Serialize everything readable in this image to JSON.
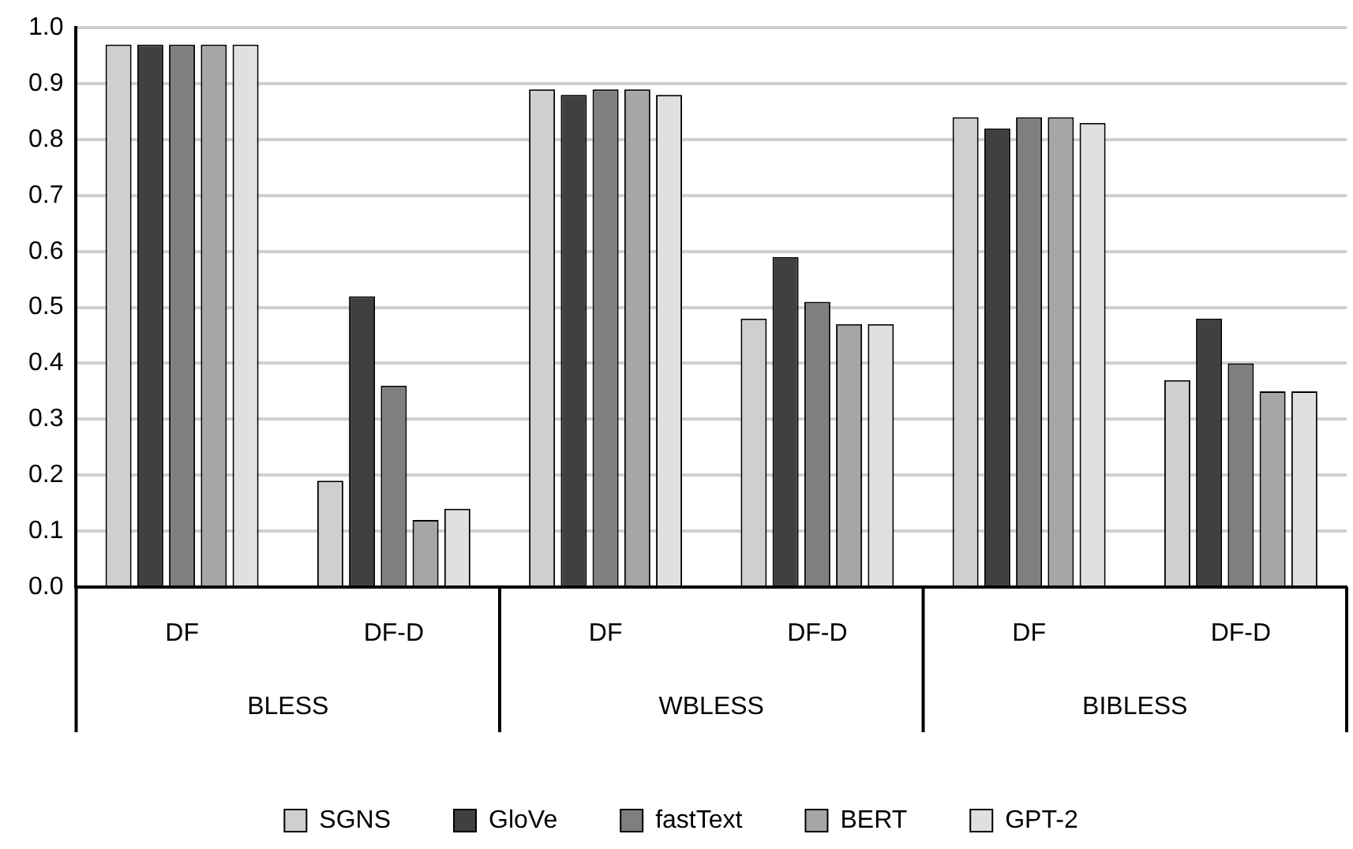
{
  "chart_data": {
    "type": "bar",
    "categories": [
      "DF",
      "DF-D",
      "DF",
      "DF-D",
      "DF",
      "DF-D"
    ],
    "annotations": [
      "BLESS",
      "WBLESS",
      "BIBLESS"
    ],
    "series": [
      {
        "name": "SGNS",
        "color": "#cfcfcf",
        "values": [
          0.97,
          0.19,
          0.89,
          0.48,
          0.84,
          0.37
        ]
      },
      {
        "name": "GloVe",
        "color": "#404040",
        "values": [
          0.97,
          0.52,
          0.88,
          0.59,
          0.82,
          0.48
        ]
      },
      {
        "name": "fastText",
        "color": "#7f7f7f",
        "values": [
          0.97,
          0.36,
          0.89,
          0.51,
          0.84,
          0.4
        ]
      },
      {
        "name": "BERT",
        "color": "#a6a6a6",
        "values": [
          0.97,
          0.12,
          0.89,
          0.47,
          0.84,
          0.35
        ]
      },
      {
        "name": "GPT-2",
        "color": "#e0e0e0",
        "values": [
          0.97,
          0.14,
          0.88,
          0.47,
          0.83,
          0.35
        ]
      }
    ],
    "ylim": [
      0,
      1
    ],
    "yticks": [
      {
        "value": 0,
        "label": "0.0"
      },
      {
        "value": 0.1,
        "label": "0.1"
      },
      {
        "value": 0.2,
        "label": "0.2"
      },
      {
        "value": 0.3,
        "label": "0.3"
      },
      {
        "value": 0.4,
        "label": "0.4"
      },
      {
        "value": 0.5,
        "label": "0.5"
      },
      {
        "value": 0.6,
        "label": "0.6"
      },
      {
        "value": 0.7,
        "label": "0.7"
      },
      {
        "value": 0.8,
        "label": "0.8"
      },
      {
        "value": 0.9,
        "label": "0.9"
      },
      {
        "value": 1,
        "label": "1.0"
      }
    ],
    "grid": "y",
    "legend": "bottom"
  }
}
